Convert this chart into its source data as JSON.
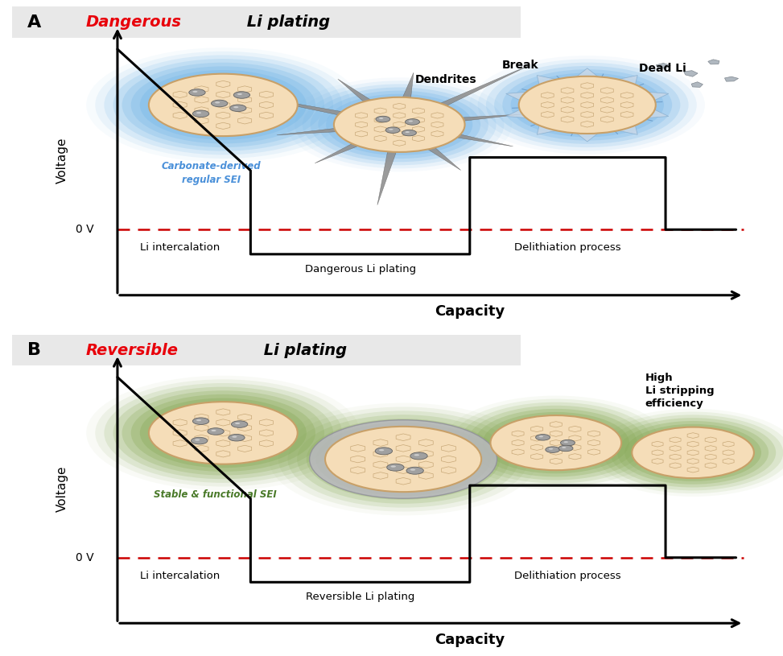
{
  "bg_color": "#ffffff",
  "title_A_red": "Dangerous",
  "title_A_black": " Li plating",
  "title_B_red": "Reversible",
  "title_B_black": " Li plating",
  "title_red_color": "#e8000a",
  "sei_blue": "#7ab8e8",
  "sei_blue_dark": "#4a90d9",
  "sei_green": "#8aab5a",
  "sei_green_dark": "#4a7a2a",
  "graphite_fill": "#f5ddb8",
  "graphite_edge": "#c8a068",
  "hex_edge": "#c8a878",
  "li_sphere": "#a0a0a0",
  "li_sphere_edge": "#606060",
  "gray_li_layer": "#b8b8be",
  "dead_li_fill": "#b0b8c0",
  "dead_li_edge": "#808890",
  "dendrite_fill": "#909090",
  "crack_color": "#c8d8e8",
  "panel_title_bg": "#e8e8e8",
  "zero_v_color": "#cc0000",
  "ann_A": {
    "carbonate_color": "#4a90d9",
    "carbonate_text": "Carbonate-derived\nregular SEI",
    "dendrites": "Dendrites",
    "break_label": "Break",
    "dead_li": "Dead Li",
    "li_intercalation": "Li intercalation",
    "dangerous_plating": "Dangerous Li plating",
    "delithiation": "Delithiation process"
  },
  "ann_B": {
    "stable_sei_color": "#4a7a2a",
    "stable_sei": "Stable & functional SEI",
    "high_efficiency": "High\nLi stripping\nefficiency",
    "li_intercalation": "Li intercalation",
    "reversible_plating": "Reversible Li plating",
    "delithiation": "Delithiation process"
  }
}
